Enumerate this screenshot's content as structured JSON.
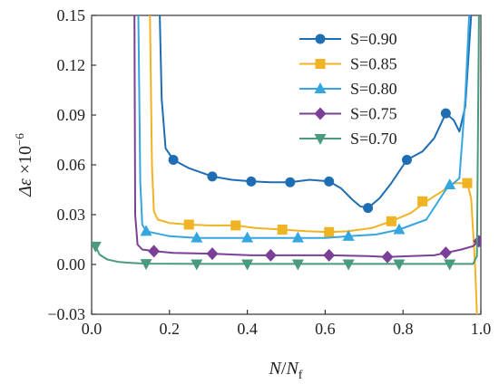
{
  "chart_data": {
    "type": "line",
    "title": "",
    "xlabel": "N/N_f",
    "ylabel": "Δε ×10^−6",
    "xlim": [
      0.0,
      1.0
    ],
    "ylim": [
      -0.03,
      0.15
    ],
    "xticks": [
      "0.0",
      "0.2",
      "0.4",
      "0.6",
      "0.8",
      "1.0"
    ],
    "yticks": [
      "−0.03",
      "0.00",
      "0.03",
      "0.06",
      "0.09",
      "0.12",
      "0.15"
    ],
    "legend_position": "top-right",
    "grid": false,
    "series": [
      {
        "name": "S=0.90",
        "color": "#1f6db3",
        "marker": "circle",
        "line": [
          [
            0.175,
            0.15
          ],
          [
            0.18,
            0.1
          ],
          [
            0.19,
            0.07
          ],
          [
            0.21,
            0.063
          ],
          [
            0.25,
            0.058
          ],
          [
            0.31,
            0.053
          ],
          [
            0.36,
            0.051
          ],
          [
            0.41,
            0.05
          ],
          [
            0.46,
            0.0495
          ],
          [
            0.51,
            0.0495
          ],
          [
            0.56,
            0.051
          ],
          [
            0.61,
            0.05
          ],
          [
            0.64,
            0.046
          ],
          [
            0.67,
            0.039
          ],
          [
            0.69,
            0.035
          ],
          [
            0.71,
            0.034
          ],
          [
            0.74,
            0.04
          ],
          [
            0.77,
            0.049
          ],
          [
            0.81,
            0.063
          ],
          [
            0.85,
            0.068
          ],
          [
            0.88,
            0.076
          ],
          [
            0.91,
            0.091
          ],
          [
            0.93,
            0.087
          ],
          [
            0.945,
            0.08
          ],
          [
            0.96,
            0.095
          ],
          [
            0.975,
            0.15
          ]
        ],
        "markers": [
          [
            0.21,
            0.063
          ],
          [
            0.31,
            0.053
          ],
          [
            0.41,
            0.05
          ],
          [
            0.51,
            0.0495
          ],
          [
            0.61,
            0.05
          ],
          [
            0.71,
            0.034
          ],
          [
            0.81,
            0.063
          ],
          [
            0.91,
            0.091
          ]
        ]
      },
      {
        "name": "S=0.85",
        "color": "#f0b323",
        "marker": "square",
        "line": [
          [
            0.15,
            0.15
          ],
          [
            0.155,
            0.06
          ],
          [
            0.16,
            0.032
          ],
          [
            0.17,
            0.027
          ],
          [
            0.2,
            0.025
          ],
          [
            0.25,
            0.024
          ],
          [
            0.3,
            0.0235
          ],
          [
            0.37,
            0.0235
          ],
          [
            0.42,
            0.022
          ],
          [
            0.49,
            0.021
          ],
          [
            0.55,
            0.02
          ],
          [
            0.61,
            0.0195
          ],
          [
            0.66,
            0.02
          ],
          [
            0.72,
            0.022
          ],
          [
            0.77,
            0.026
          ],
          [
            0.82,
            0.031
          ],
          [
            0.86,
            0.038
          ],
          [
            0.9,
            0.044
          ],
          [
            0.93,
            0.049
          ],
          [
            0.965,
            0.049
          ],
          [
            0.975,
            0.04
          ],
          [
            0.985,
            0.0
          ],
          [
            0.99,
            -0.03
          ]
        ],
        "markers": [
          [
            0.25,
            0.024
          ],
          [
            0.37,
            0.0235
          ],
          [
            0.49,
            0.021
          ],
          [
            0.61,
            0.0195
          ],
          [
            0.77,
            0.026
          ],
          [
            0.85,
            0.038
          ],
          [
            0.965,
            0.049
          ]
        ]
      },
      {
        "name": "S=0.80",
        "color": "#35a6e0",
        "marker": "triangle-up",
        "line": [
          [
            0.12,
            0.15
          ],
          [
            0.125,
            0.05
          ],
          [
            0.13,
            0.024
          ],
          [
            0.14,
            0.02
          ],
          [
            0.2,
            0.017
          ],
          [
            0.27,
            0.016
          ],
          [
            0.34,
            0.016
          ],
          [
            0.4,
            0.016
          ],
          [
            0.47,
            0.016
          ],
          [
            0.53,
            0.016
          ],
          [
            0.6,
            0.016
          ],
          [
            0.66,
            0.017
          ],
          [
            0.73,
            0.018
          ],
          [
            0.79,
            0.021
          ],
          [
            0.86,
            0.027
          ],
          [
            0.91,
            0.045
          ],
          [
            0.93,
            0.049
          ],
          [
            0.945,
            0.052
          ],
          [
            0.96,
            0.1
          ],
          [
            0.97,
            0.15
          ]
        ],
        "markers": [
          [
            0.14,
            0.02
          ],
          [
            0.27,
            0.016
          ],
          [
            0.4,
            0.016
          ],
          [
            0.53,
            0.016
          ],
          [
            0.66,
            0.017
          ],
          [
            0.79,
            0.021
          ],
          [
            0.92,
            0.048
          ]
        ]
      },
      {
        "name": "S=0.75",
        "color": "#7b3f98",
        "marker": "diamond",
        "line": [
          [
            0.11,
            0.15
          ],
          [
            0.112,
            0.03
          ],
          [
            0.118,
            0.012
          ],
          [
            0.13,
            0.009
          ],
          [
            0.16,
            0.008
          ],
          [
            0.21,
            0.007
          ],
          [
            0.31,
            0.0065
          ],
          [
            0.41,
            0.0055
          ],
          [
            0.51,
            0.0055
          ],
          [
            0.61,
            0.0055
          ],
          [
            0.71,
            0.005
          ],
          [
            0.76,
            0.0045
          ],
          [
            0.82,
            0.005
          ],
          [
            0.88,
            0.0055
          ],
          [
            0.91,
            0.007
          ],
          [
            0.95,
            0.009
          ],
          [
            0.98,
            0.011
          ],
          [
            1.0,
            0.015
          ]
        ],
        "markers": [
          [
            0.16,
            0.008
          ],
          [
            0.31,
            0.0065
          ],
          [
            0.46,
            0.0055
          ],
          [
            0.61,
            0.0055
          ],
          [
            0.76,
            0.0045
          ],
          [
            0.91,
            0.007
          ],
          [
            0.995,
            0.014
          ]
        ]
      },
      {
        "name": "S=0.70",
        "color": "#4a9a7c",
        "marker": "triangle-down",
        "line": [
          [
            0.01,
            0.011
          ],
          [
            0.02,
            0.006
          ],
          [
            0.04,
            0.003
          ],
          [
            0.07,
            0.0015
          ],
          [
            0.1,
            0.001
          ],
          [
            0.14,
            0.0005
          ],
          [
            0.3,
            0.0003
          ],
          [
            0.5,
            0.0003
          ],
          [
            0.7,
            0.0003
          ],
          [
            0.9,
            0.0003
          ],
          [
            0.98,
            0.0003
          ],
          [
            0.99,
            0.005
          ],
          [
            0.995,
            0.15
          ]
        ],
        "markers": [
          [
            0.01,
            0.011
          ],
          [
            0.14,
            0.0005
          ],
          [
            0.27,
            0.0003
          ],
          [
            0.4,
            0.0003
          ],
          [
            0.53,
            0.0003
          ],
          [
            0.66,
            0.0003
          ],
          [
            0.79,
            0.0003
          ],
          [
            0.92,
            0.0003
          ]
        ]
      }
    ]
  }
}
